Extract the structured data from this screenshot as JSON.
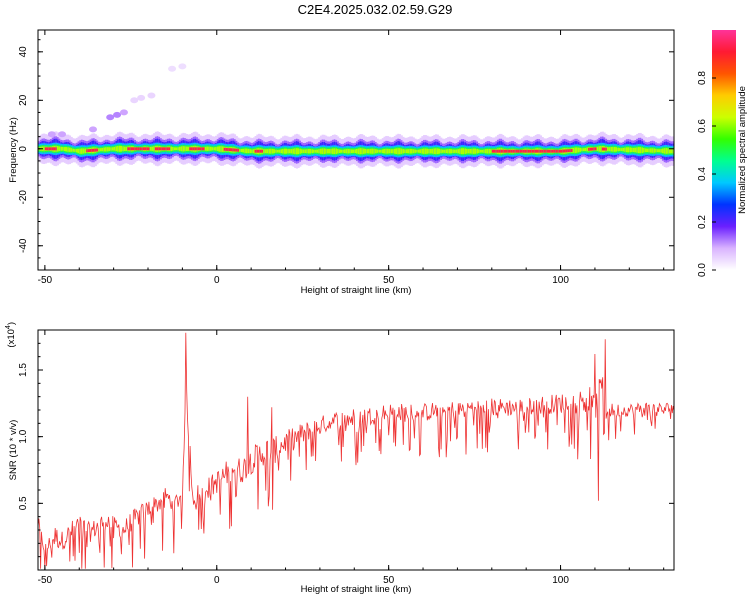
{
  "title": "C2E4.2025.032.02.59.G29",
  "chart_data": [
    {
      "type": "heatmap",
      "title": "C2E4.2025.032.02.59.G29",
      "xlabel": "Height of straight line (km)",
      "ylabel": "Frequency (Hz)",
      "xlim": [
        -52,
        133
      ],
      "ylim": [
        -50,
        49
      ],
      "x_ticks": [
        -50,
        0,
        50,
        100
      ],
      "y_ticks": [
        -40,
        -20,
        0,
        20,
        40
      ],
      "x_tick_labels": [
        "-50",
        "0",
        "50",
        "100"
      ],
      "y_tick_labels": [
        "-40",
        "-20",
        "0",
        "20",
        "40"
      ],
      "colorbar": {
        "label": "Normalized spectral amplitude",
        "range": [
          0,
          1
        ],
        "ticks": [
          0.0,
          0.2,
          0.4,
          0.6,
          0.8
        ],
        "tick_labels": [
          "0.0",
          "0.2",
          "0.4",
          "0.6",
          "0.8"
        ],
        "colors": [
          "#ffffff",
          "#d9b3ff",
          "#6a1fff",
          "#0033ff",
          "#00c8ff",
          "#00ff90",
          "#33ff00",
          "#ccff00",
          "#ffcc00",
          "#ff5500",
          "#ff1a33",
          "#ff3399"
        ]
      },
      "ridge": {
        "frequency_hz": [
          [
            -52,
            0
          ],
          [
            -45,
            0
          ],
          [
            -40,
            -1
          ],
          [
            -30,
            0
          ],
          [
            -20,
            0
          ],
          [
            -10,
            0
          ],
          [
            0,
            0
          ],
          [
            10,
            -1
          ],
          [
            20,
            -1
          ],
          [
            40,
            -1
          ],
          [
            60,
            -1
          ],
          [
            80,
            -1
          ],
          [
            100,
            -1
          ],
          [
            110,
            0
          ],
          [
            133,
            -1
          ]
        ],
        "peak_segments_km": [
          [
            -50,
            -47
          ],
          [
            -38,
            -35
          ],
          [
            -26,
            -20
          ],
          [
            -18,
            -14
          ],
          [
            -8,
            -4
          ],
          [
            2,
            6
          ],
          [
            11,
            13
          ],
          [
            80,
            103
          ],
          [
            108,
            110
          ],
          [
            112,
            113
          ]
        ]
      },
      "spurious_points": [
        {
          "x": -48,
          "y": 6,
          "amplitude": 0.1
        },
        {
          "x": -45,
          "y": 6,
          "amplitude": 0.1
        },
        {
          "x": -36,
          "y": 8,
          "amplitude": 0.1
        },
        {
          "x": -31,
          "y": 13,
          "amplitude": 0.12
        },
        {
          "x": -29,
          "y": 14,
          "amplitude": 0.12
        },
        {
          "x": -27,
          "y": 15,
          "amplitude": 0.1
        },
        {
          "x": -24,
          "y": 20,
          "amplitude": 0.05
        },
        {
          "x": -22,
          "y": 21,
          "amplitude": 0.05
        },
        {
          "x": -19,
          "y": 22,
          "amplitude": 0.05
        },
        {
          "x": -13,
          "y": 33,
          "amplitude": 0.04
        },
        {
          "x": -10,
          "y": 34,
          "amplitude": 0.04
        }
      ]
    },
    {
      "type": "line",
      "xlabel": "Height of straight line (km)",
      "ylabel": "SNR (10 * v/v)",
      "y_multiplier_label": "(x10",
      "y_multiplier_exponent": "4",
      "xlim": [
        -52,
        133
      ],
      "ylim": [
        0,
        1.8
      ],
      "x_ticks": [
        -50,
        0,
        50,
        100
      ],
      "y_ticks": [
        0.5,
        1.0,
        1.5
      ],
      "x_tick_labels": [
        "-50",
        "0",
        "50",
        "100"
      ],
      "y_tick_labels": [
        "0.5",
        "1.0",
        "1.5"
      ],
      "series": [
        {
          "color": "#ee3333",
          "x": [
            -52,
            -50,
            -47,
            -45,
            -42,
            -40,
            -37,
            -35,
            -32,
            -30,
            -27,
            -25,
            -22,
            -20,
            -17,
            -15,
            -12,
            -10,
            -9,
            -7,
            -5,
            -2,
            0,
            2,
            5,
            7,
            10,
            12,
            15,
            17,
            20,
            22,
            25,
            27,
            30,
            35,
            40,
            45,
            50,
            55,
            60,
            65,
            70,
            75,
            80,
            85,
            90,
            95,
            100,
            105,
            108,
            110,
            112,
            113,
            115,
            120,
            125,
            130,
            133
          ],
          "values": [
            0.35,
            0.15,
            0.25,
            0.22,
            0.3,
            0.35,
            0.28,
            0.32,
            0.38,
            0.33,
            0.3,
            0.36,
            0.42,
            0.46,
            0.5,
            0.55,
            0.5,
            0.58,
            1.4,
            0.55,
            0.58,
            0.62,
            0.66,
            0.7,
            0.78,
            0.74,
            0.82,
            0.86,
            0.9,
            0.9,
            0.96,
            0.98,
            1.02,
            1.05,
            1.08,
            1.12,
            1.14,
            1.16,
            1.18,
            1.18,
            1.18,
            1.2,
            1.2,
            1.22,
            1.22,
            1.22,
            1.22,
            1.24,
            1.25,
            1.26,
            1.3,
            1.2,
            1.4,
            1.2,
            1.2,
            1.2,
            1.21,
            1.2,
            1.22
          ],
          "noise_amplitude": [
            0.25,
            0.2,
            0.35,
            0.3,
            0.3,
            0.3,
            0.3,
            0.3,
            0.3,
            0.28,
            0.3,
            0.3,
            0.3,
            0.3,
            0.3,
            0.3,
            0.3,
            0.3,
            0.4,
            0.3,
            0.3,
            0.35,
            0.35,
            0.4,
            0.4,
            0.4,
            0.4,
            0.4,
            0.4,
            0.4,
            0.35,
            0.35,
            0.35,
            0.3,
            0.3,
            0.3,
            0.3,
            0.28,
            0.3,
            0.28,
            0.28,
            0.28,
            0.28,
            0.28,
            0.28,
            0.28,
            0.28,
            0.28,
            0.3,
            0.35,
            0.4,
            0.4,
            0.45,
            0.35,
            0.2,
            0.2,
            0.22,
            0.22,
            0.22
          ],
          "spikes": [
            {
              "x": -9,
              "y": 1.78
            },
            {
              "x": 5,
              "y": 0.75
            },
            {
              "x": 9,
              "y": 1.3
            },
            {
              "x": 16,
              "y": 1.22
            },
            {
              "x": 113,
              "y": 1.73
            },
            {
              "x": 111,
              "y": 0.52
            },
            {
              "x": 110,
              "y": 1.62
            }
          ]
        }
      ]
    }
  ]
}
